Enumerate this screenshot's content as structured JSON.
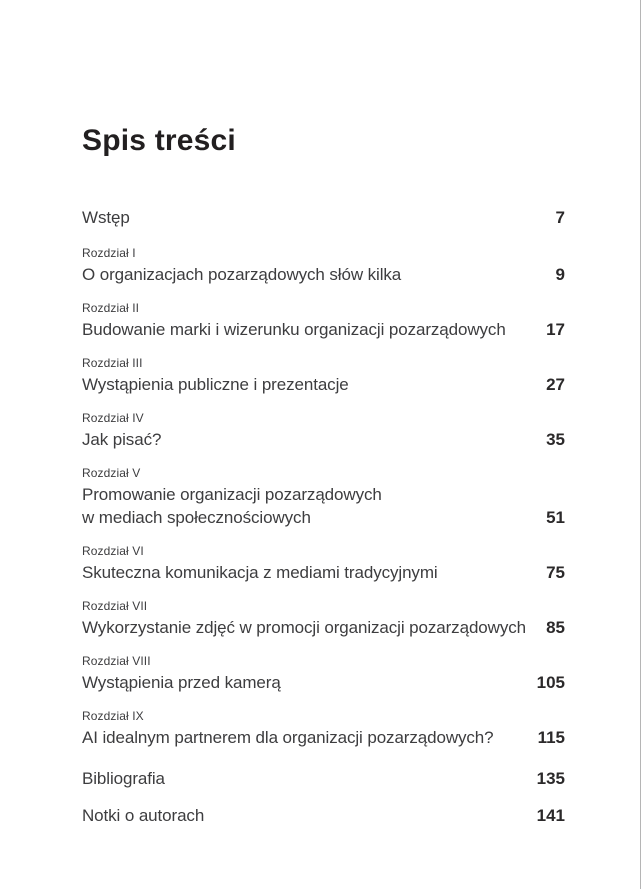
{
  "page": {
    "title": "Spis treści"
  },
  "colors": {
    "background": "#ffffff",
    "title_text": "#221f20",
    "body_text": "#3d3d3f",
    "page_number_text": "#2b292a",
    "page_edge_line": "#b5b5b5"
  },
  "toc": {
    "entries": [
      {
        "title": "Wstęp",
        "page": "7"
      },
      {
        "label": "Rozdział I",
        "title": "O organizacjach pozarządowych słów kilka",
        "page": "9"
      },
      {
        "label": "Rozdział II",
        "title": "Budowanie marki i wizerunku organizacji pozarządowych",
        "page": "17"
      },
      {
        "label": "Rozdział III",
        "title": "Wystąpienia publiczne i prezentacje",
        "page": "27"
      },
      {
        "label": "Rozdział IV",
        "title": "Jak pisać?",
        "page": "35"
      },
      {
        "label": "Rozdział V",
        "title": "Promowanie organizacji pozarządowych\nw mediach społecznościowych",
        "page": "51"
      },
      {
        "label": "Rozdział VI",
        "title": "Skuteczna komunikacja z mediami tradycyjnymi",
        "page": "75"
      },
      {
        "label": "Rozdział VII",
        "title": "Wykorzystanie zdjęć w promocji organizacji pozarządowych",
        "page": "85"
      },
      {
        "label": "Rozdział VIII",
        "title": "Wystąpienia przed kamerą",
        "page": "105"
      },
      {
        "label": "Rozdział IX",
        "title": "AI idealnym partnerem dla organizacji pozarządowych?",
        "page": "115"
      },
      {
        "title": "Bibliografia",
        "page": "135"
      },
      {
        "title": "Notki o autorach",
        "page": "141"
      }
    ]
  }
}
